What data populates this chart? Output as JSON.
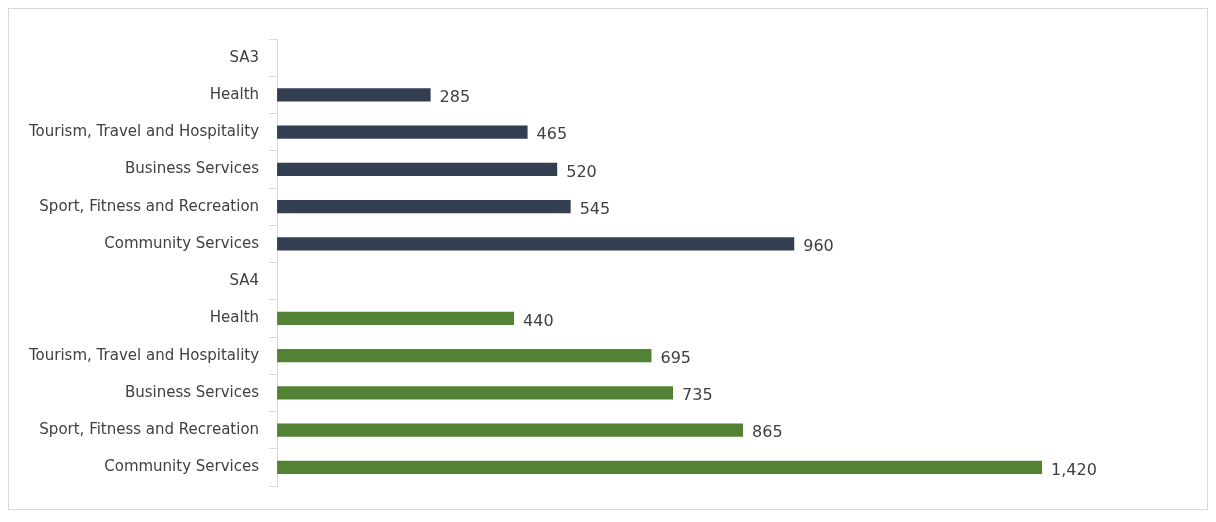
{
  "chart_data": {
    "type": "bar",
    "orientation": "horizontal",
    "categories": [
      "SA3",
      "Health",
      "Tourism, Travel and Hospitality",
      "Business Services",
      "Sport, Fitness and Recreation",
      "Community Services",
      "SA4",
      "Health",
      "Tourism, Travel and Hospitality",
      "Business Services",
      "Sport, Fitness and Recreation",
      "Community Services"
    ],
    "values": [
      null,
      285,
      465,
      520,
      545,
      960,
      null,
      440,
      695,
      735,
      865,
      1420
    ],
    "colors": [
      "#333f50",
      "#333f50",
      "#333f50",
      "#333f50",
      "#333f50",
      "#333f50",
      "#548235",
      "#548235",
      "#548235",
      "#548235",
      "#548235",
      "#548235"
    ],
    "value_labels": [
      null,
      "285",
      "465",
      "520",
      "545",
      "960",
      null,
      "440",
      "695",
      "735",
      "865",
      "1,420"
    ],
    "legend": false
  }
}
